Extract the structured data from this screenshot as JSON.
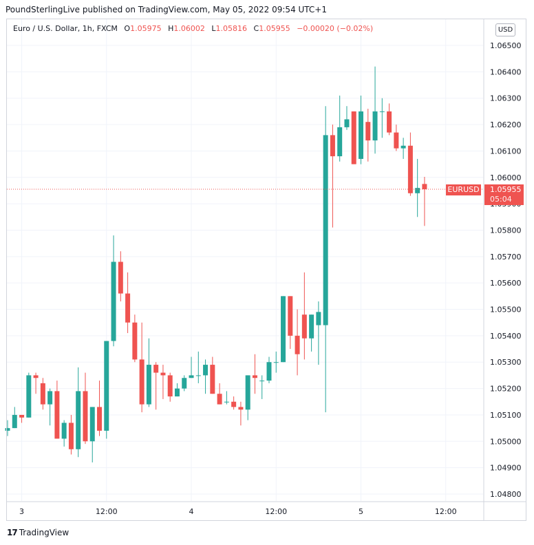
{
  "header": {
    "publisher_line": "PoundSterlingLive published on TradingView.com, May 05, 2022 09:54 UTC+1"
  },
  "legend": {
    "symbol": "Euro / U.S. Dollar, 1h, FXCM",
    "open_label": "O",
    "open": "1.05975",
    "high_label": "H",
    "high": "1.06002",
    "low_label": "L",
    "low": "1.05816",
    "close_label": "C",
    "close": "1.05955",
    "change": "−0.00020 (−0.02%)"
  },
  "currency_button": "USD",
  "price_tag": {
    "symbol": "EURUSD",
    "price": "1.05955",
    "countdown": "05:04"
  },
  "footer": {
    "brand": "TradingView",
    "logo_glyph": "17"
  },
  "colors": {
    "up": "#26a69a",
    "down": "#ef5350",
    "grid": "#f0f3fa",
    "axis_text": "#131722"
  },
  "chart_data": {
    "type": "candlestick",
    "ylim": [
      1.0475,
      1.0656
    ],
    "y_ticks": [
      "1.06500",
      "1.06400",
      "1.06300",
      "1.06200",
      "1.06100",
      "1.06000",
      "1.05900",
      "1.05800",
      "1.05700",
      "1.05600",
      "1.05500",
      "1.05400",
      "1.05300",
      "1.05200",
      "1.05100",
      "1.05000",
      "1.04900",
      "1.04800"
    ],
    "x_ticks": [
      {
        "label": "3",
        "index": 2
      },
      {
        "label": "12:00",
        "index": 14
      },
      {
        "label": "4",
        "index": 26
      },
      {
        "label": "12:00",
        "index": 38
      },
      {
        "label": "5",
        "index": 50
      },
      {
        "label": "12:00",
        "index": 62
      }
    ],
    "last_price": 1.05955,
    "candles": [
      {
        "o": 1.0504,
        "h": 1.0508,
        "l": 1.0502,
        "c": 1.0505
      },
      {
        "o": 1.0505,
        "h": 1.0513,
        "l": 1.0505,
        "c": 1.051
      },
      {
        "o": 1.051,
        "h": 1.051,
        "l": 1.0507,
        "c": 1.0509
      },
      {
        "o": 1.0509,
        "h": 1.0526,
        "l": 1.0509,
        "c": 1.0525
      },
      {
        "o": 1.0525,
        "h": 1.0526,
        "l": 1.0518,
        "c": 1.0524
      },
      {
        "o": 1.0522,
        "h": 1.0524,
        "l": 1.0512,
        "c": 1.0514
      },
      {
        "o": 1.0514,
        "h": 1.052,
        "l": 1.0506,
        "c": 1.0519
      },
      {
        "o": 1.0519,
        "h": 1.0523,
        "l": 1.0501,
        "c": 1.0501
      },
      {
        "o": 1.0501,
        "h": 1.0508,
        "l": 1.0498,
        "c": 1.0507
      },
      {
        "o": 1.0507,
        "h": 1.051,
        "l": 1.0495,
        "c": 1.0497
      },
      {
        "o": 1.0497,
        "h": 1.0528,
        "l": 1.0494,
        "c": 1.0519
      },
      {
        "o": 1.0519,
        "h": 1.0526,
        "l": 1.0499,
        "c": 1.05
      },
      {
        "o": 1.05,
        "h": 1.0513,
        "l": 1.0492,
        "c": 1.0513
      },
      {
        "o": 1.0513,
        "h": 1.0523,
        "l": 1.0502,
        "c": 1.0504
      },
      {
        "o": 1.0504,
        "h": 1.0538,
        "l": 1.0501,
        "c": 1.0538
      },
      {
        "o": 1.0538,
        "h": 1.0578,
        "l": 1.0536,
        "c": 1.0568
      },
      {
        "o": 1.0568,
        "h": 1.0572,
        "l": 1.0553,
        "c": 1.0556
      },
      {
        "o": 1.0556,
        "h": 1.0564,
        "l": 1.0541,
        "c": 1.0545
      },
      {
        "o": 1.0545,
        "h": 1.0548,
        "l": 1.053,
        "c": 1.0531
      },
      {
        "o": 1.0531,
        "h": 1.0545,
        "l": 1.0511,
        "c": 1.0514
      },
      {
        "o": 1.0514,
        "h": 1.0539,
        "l": 1.0513,
        "c": 1.0529
      },
      {
        "o": 1.0529,
        "h": 1.053,
        "l": 1.0512,
        "c": 1.0526
      },
      {
        "o": 1.0526,
        "h": 1.0529,
        "l": 1.0516,
        "c": 1.0525
      },
      {
        "o": 1.0525,
        "h": 1.0526,
        "l": 1.0515,
        "c": 1.0517
      },
      {
        "o": 1.0517,
        "h": 1.0522,
        "l": 1.0517,
        "c": 1.052
      },
      {
        "o": 1.052,
        "h": 1.0525,
        "l": 1.0519,
        "c": 1.0524
      },
      {
        "o": 1.0524,
        "h": 1.0532,
        "l": 1.0524,
        "c": 1.0525
      },
      {
        "o": 1.0525,
        "h": 1.0534,
        "l": 1.0522,
        "c": 1.0525
      },
      {
        "o": 1.0525,
        "h": 1.0531,
        "l": 1.0518,
        "c": 1.0529
      },
      {
        "o": 1.0529,
        "h": 1.0532,
        "l": 1.0518,
        "c": 1.0518
      },
      {
        "o": 1.0518,
        "h": 1.0522,
        "l": 1.0514,
        "c": 1.0514
      },
      {
        "o": 1.0515,
        "h": 1.0519,
        "l": 1.0514,
        "c": 1.0515
      },
      {
        "o": 1.0515,
        "h": 1.0517,
        "l": 1.0512,
        "c": 1.0513
      },
      {
        "o": 1.0513,
        "h": 1.0515,
        "l": 1.0506,
        "c": 1.0512
      },
      {
        "o": 1.0512,
        "h": 1.0525,
        "l": 1.0508,
        "c": 1.0525
      },
      {
        "o": 1.0525,
        "h": 1.0533,
        "l": 1.0518,
        "c": 1.0524
      },
      {
        "o": 1.0523,
        "h": 1.0525,
        "l": 1.0516,
        "c": 1.0523
      },
      {
        "o": 1.0523,
        "h": 1.0532,
        "l": 1.0522,
        "c": 1.053
      },
      {
        "o": 1.053,
        "h": 1.0534,
        "l": 1.0526,
        "c": 1.053
      },
      {
        "o": 1.053,
        "h": 1.0555,
        "l": 1.053,
        "c": 1.0555
      },
      {
        "o": 1.0555,
        "h": 1.0555,
        "l": 1.0535,
        "c": 1.054
      },
      {
        "o": 1.054,
        "h": 1.055,
        "l": 1.0525,
        "c": 1.0533
      },
      {
        "o": 1.0548,
        "h": 1.0564,
        "l": 1.0531,
        "c": 1.0539
      },
      {
        "o": 1.0539,
        "h": 1.0548,
        "l": 1.0534,
        "c": 1.0548
      },
      {
        "o": 1.0544,
        "h": 1.0553,
        "l": 1.0529,
        "c": 1.0549
      },
      {
        "o": 1.0544,
        "h": 1.0627,
        "l": 1.0511,
        "c": 1.0616
      },
      {
        "o": 1.0616,
        "h": 1.062,
        "l": 1.0581,
        "c": 1.0608
      },
      {
        "o": 1.0608,
        "h": 1.0631,
        "l": 1.0606,
        "c": 1.0619
      },
      {
        "o": 1.0619,
        "h": 1.0627,
        "l": 1.0618,
        "c": 1.0622
      },
      {
        "o": 1.0625,
        "h": 1.0625,
        "l": 1.0605,
        "c": 1.0605
      },
      {
        "o": 1.0607,
        "h": 1.0631,
        "l": 1.0605,
        "c": 1.0625
      },
      {
        "o": 1.0621,
        "h": 1.0626,
        "l": 1.0606,
        "c": 1.0614
      },
      {
        "o": 1.0614,
        "h": 1.0642,
        "l": 1.0609,
        "c": 1.0625
      },
      {
        "o": 1.0625,
        "h": 1.063,
        "l": 1.0615,
        "c": 1.0625
      },
      {
        "o": 1.0625,
        "h": 1.0628,
        "l": 1.0616,
        "c": 1.0617
      },
      {
        "o": 1.0617,
        "h": 1.062,
        "l": 1.061,
        "c": 1.0611
      },
      {
        "o": 1.0611,
        "h": 1.0615,
        "l": 1.0607,
        "c": 1.0612
      },
      {
        "o": 1.0612,
        "h": 1.0617,
        "l": 1.0593,
        "c": 1.0594
      },
      {
        "o": 1.0594,
        "h": 1.0607,
        "l": 1.0585,
        "c": 1.0596
      },
      {
        "o": 1.05975,
        "h": 1.06002,
        "l": 1.05816,
        "c": 1.05955
      }
    ]
  }
}
